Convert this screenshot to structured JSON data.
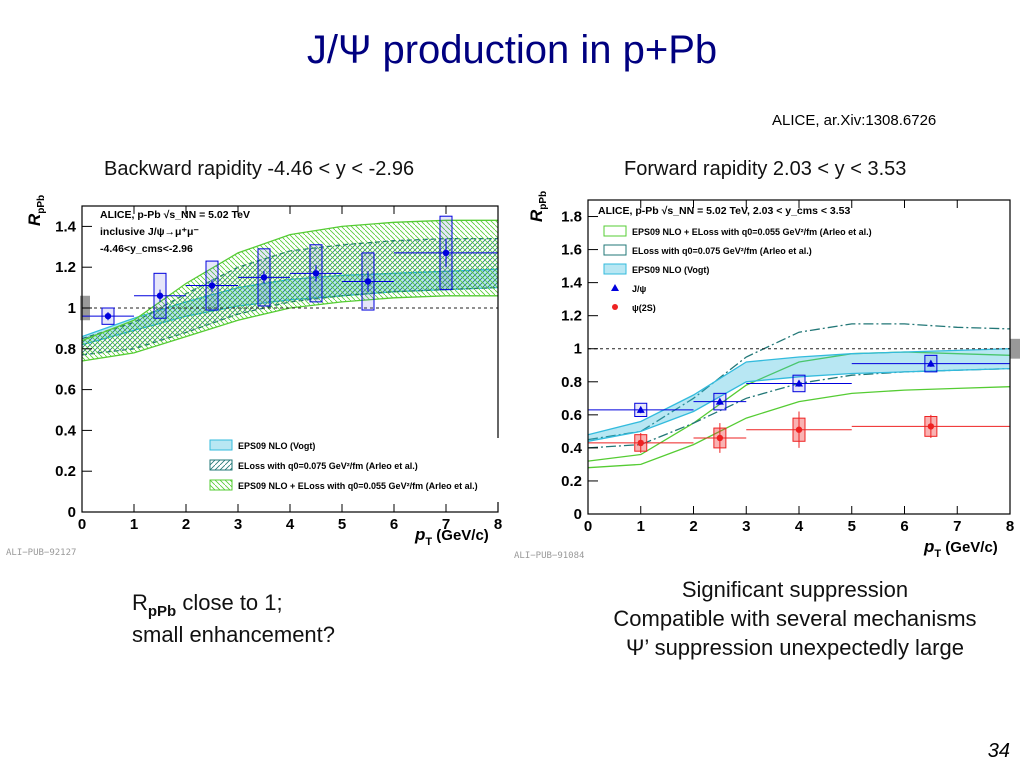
{
  "slide": {
    "title": "J/Ψ production in p+Pb",
    "reference": "ALICE, ar.Xiv:1308.6726",
    "left_heading": "Backward rapidity -4.46 < y < -2.96",
    "right_heading": "Forward rapidity 2.03 < y < 3.53",
    "left_note": {
      "symbol": "R",
      "subscript": "pPb",
      "line1_rest": " close to 1;",
      "line2": "small enhancement?"
    },
    "right_note": [
      "Significant suppression",
      "Compatible with several mechanisms",
      "Ψ’ suppression unexpectedly large"
    ],
    "page_number": "34"
  },
  "colors": {
    "title": "#000080",
    "jpsi": "#0000dd",
    "psi2s": "#ee2222",
    "eps09": "#33bbdd",
    "eloss": "#227777",
    "combined": "#55cc33"
  },
  "chart_data": [
    {
      "type": "scatter",
      "xlabel": "p_T (GeV/c)",
      "xlabel_parts": {
        "var": "p",
        "sub": "T",
        "unit": " (GeV/c)"
      },
      "ylabel": "R_pPb",
      "ylabel_parts": {
        "var": "R",
        "sub": "pPb"
      },
      "xlim": [
        0,
        8
      ],
      "ylim": [
        0,
        1.5
      ],
      "xticks": [
        "0",
        "1",
        "2",
        "3",
        "4",
        "5",
        "6",
        "7",
        "8"
      ],
      "yticks": [
        "0",
        "0.2",
        "0.4",
        "0.6",
        "0.8",
        "1",
        "1.2",
        "1.4"
      ],
      "ytick_values": [
        0,
        0.2,
        0.4,
        0.6,
        0.8,
        1,
        1.2,
        1.4
      ],
      "header": [
        "ALICE, p-Pb √s_NN = 5.02 TeV",
        "inclusive J/ψ→μ⁺μ⁻",
        "-4.46<y_cms<-2.96"
      ],
      "pub_tag": "ALI−PUB−92127",
      "legend": [
        "EPS09 NLO (Vogt)",
        "ELoss with q0=0.075 GeV²/fm (Arleo et al.)",
        "EPS09 NLO + ELoss with q0=0.055 GeV²/fm (Arleo et al.)"
      ],
      "series": [
        {
          "name": "J/ψ",
          "x": [
            0.5,
            1.5,
            2.5,
            3.5,
            4.5,
            5.5,
            7.0
          ],
          "xerr": [
            0.5,
            0.5,
            0.5,
            0.5,
            0.5,
            0.5,
            1.0
          ],
          "y": [
            0.96,
            1.06,
            1.11,
            1.15,
            1.17,
            1.13,
            1.27
          ],
          "yerr": [
            0.02,
            0.03,
            0.03,
            0.03,
            0.04,
            0.05,
            0.07
          ],
          "syst": [
            0.04,
            0.11,
            0.12,
            0.14,
            0.14,
            0.14,
            0.18
          ]
        }
      ],
      "models": [
        {
          "name": "EPS09 NLO (Vogt)",
          "x": [
            0,
            1,
            2,
            3,
            4,
            5,
            6,
            7,
            8
          ],
          "low": [
            0.82,
            0.89,
            0.96,
            1.01,
            1.04,
            1.06,
            1.08,
            1.09,
            1.1
          ],
          "high": [
            0.86,
            0.95,
            1.03,
            1.1,
            1.14,
            1.16,
            1.17,
            1.18,
            1.19
          ]
        },
        {
          "name": "ELoss with q0=0.075 GeV²/fm (Arleo et al.)",
          "x": [
            0,
            1,
            2,
            3,
            4,
            5,
            6,
            7,
            8
          ],
          "low": [
            0.77,
            0.8,
            0.88,
            0.97,
            1.03,
            1.06,
            1.08,
            1.09,
            1.1
          ],
          "high": [
            0.85,
            0.93,
            1.07,
            1.2,
            1.28,
            1.31,
            1.33,
            1.34,
            1.34
          ]
        },
        {
          "name": "EPS09 NLO + ELoss with q0=0.055 GeV²/fm (Arleo et al.)",
          "x": [
            0,
            1,
            2,
            3,
            4,
            5,
            6,
            7,
            8
          ],
          "low": [
            0.74,
            0.78,
            0.86,
            0.94,
            1.0,
            1.03,
            1.05,
            1.06,
            1.06
          ],
          "high": [
            0.84,
            0.94,
            1.12,
            1.27,
            1.36,
            1.4,
            1.42,
            1.43,
            1.43
          ]
        }
      ],
      "reference_line": 1,
      "global_syst": 0.06
    },
    {
      "type": "scatter",
      "xlabel": "p_T (GeV/c)",
      "xlabel_parts": {
        "var": "p",
        "sub": "T",
        "unit": " (GeV/c)"
      },
      "ylabel": "R_pPb",
      "ylabel_parts": {
        "var": "R",
        "sub": "pPb"
      },
      "xlim": [
        0,
        8
      ],
      "ylim": [
        0,
        1.9
      ],
      "xticks": [
        "0",
        "1",
        "2",
        "3",
        "4",
        "5",
        "6",
        "7",
        "8"
      ],
      "yticks": [
        "0",
        "0.2",
        "0.4",
        "0.6",
        "0.8",
        "1",
        "1.2",
        "1.4",
        "1.6",
        "1.8"
      ],
      "ytick_values": [
        0,
        0.2,
        0.4,
        0.6,
        0.8,
        1,
        1.2,
        1.4,
        1.6,
        1.8
      ],
      "header": [
        "ALICE, p-Pb √s_NN = 5.02 TeV, 2.03 < y_cms < 3.53"
      ],
      "pub_tag": "ALI−PUB−91084",
      "legend": [
        "EPS09 NLO + ELoss with q0=0.055 GeV²/fm (Arleo et al.)",
        "ELoss with q0=0.075 GeV²/fm (Arleo et al.)",
        "EPS09 NLO (Vogt)",
        "J/ψ",
        "ψ(2S)"
      ],
      "series": [
        {
          "name": "J/ψ",
          "x": [
            1.0,
            2.5,
            4.0,
            6.5
          ],
          "xerr": [
            1.0,
            0.5,
            1.0,
            1.5
          ],
          "y": [
            0.63,
            0.68,
            0.79,
            0.91
          ],
          "yerr": [
            0.02,
            0.02,
            0.02,
            0.02
          ],
          "syst": [
            0.04,
            0.05,
            0.05,
            0.05
          ]
        },
        {
          "name": "ψ(2S)",
          "x": [
            1.0,
            2.5,
            4.0,
            6.5
          ],
          "xerr": [
            1.0,
            0.5,
            1.0,
            1.5
          ],
          "y": [
            0.43,
            0.46,
            0.51,
            0.53
          ],
          "yerr": [
            0.06,
            0.09,
            0.11,
            0.07
          ],
          "syst": [
            0.05,
            0.06,
            0.07,
            0.06
          ]
        }
      ],
      "models": [
        {
          "name": "EPS09 NLO + ELoss with q0=0.055 GeV²/fm (Arleo et al.)",
          "x": [
            0,
            1,
            2,
            3,
            4,
            5,
            6,
            7,
            8
          ],
          "low": [
            0.28,
            0.3,
            0.42,
            0.58,
            0.68,
            0.73,
            0.75,
            0.76,
            0.77
          ],
          "high": [
            0.32,
            0.36,
            0.55,
            0.78,
            0.92,
            0.97,
            0.98,
            0.97,
            0.96
          ]
        },
        {
          "name": "ELoss with q0=0.075 GeV²/fm (Arleo et al.)",
          "x": [
            0,
            1,
            2,
            3,
            4,
            5,
            6,
            7,
            8
          ],
          "low": [
            0.4,
            0.42,
            0.55,
            0.7,
            0.79,
            0.84,
            0.86,
            0.87,
            0.88
          ],
          "high": [
            0.45,
            0.5,
            0.7,
            0.95,
            1.1,
            1.15,
            1.15,
            1.13,
            1.12
          ]
        },
        {
          "name": "EPS09 NLO (Vogt)",
          "x": [
            0,
            1,
            2,
            3,
            4,
            5,
            6,
            7,
            8
          ],
          "low": [
            0.44,
            0.5,
            0.62,
            0.8,
            0.83,
            0.85,
            0.86,
            0.87,
            0.88
          ],
          "high": [
            0.48,
            0.56,
            0.72,
            0.92,
            0.95,
            0.97,
            0.98,
            0.99,
            1.0
          ]
        }
      ],
      "reference_line": 1,
      "global_syst": 0.06
    }
  ]
}
